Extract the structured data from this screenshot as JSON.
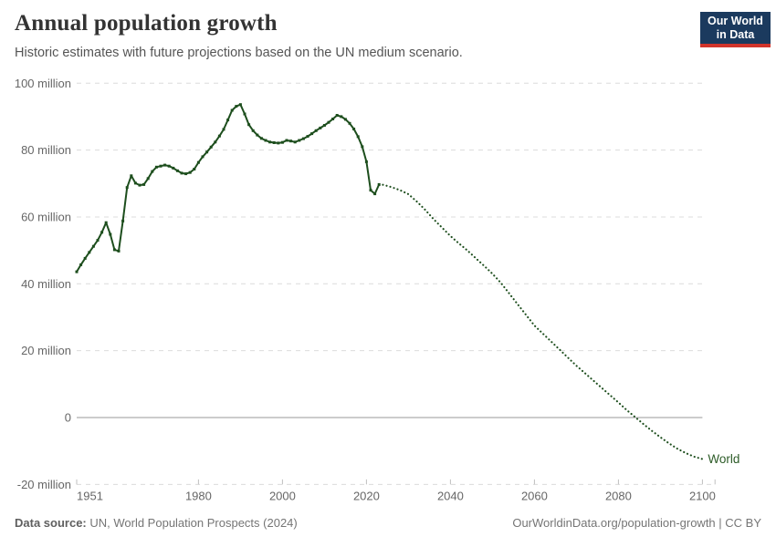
{
  "header": {
    "title": "Annual population growth",
    "subtitle": "Historic estimates with future projections based on the UN medium scenario.",
    "logo": {
      "line1": "Our World",
      "line2": "in Data"
    }
  },
  "footer": {
    "source_label": "Data source:",
    "source_value": " UN, World Population Prospects (2024)",
    "credit": "OurWorldinData.org/population-growth | CC BY"
  },
  "chart_data": {
    "type": "line",
    "title": "Annual population growth",
    "subtitle": "Historic estimates with future projections based on the UN medium scenario.",
    "entity_label": "World",
    "unit": "million",
    "x_range": [
      1951,
      2103
    ],
    "y_range": [
      -20,
      100
    ],
    "grid": true,
    "legend_position": "end-of-line",
    "y_ticks": [
      {
        "value": 100,
        "label": "100 million"
      },
      {
        "value": 80,
        "label": "80 million"
      },
      {
        "value": 60,
        "label": "60 million"
      },
      {
        "value": 40,
        "label": "40 million"
      },
      {
        "value": 20,
        "label": "20 million"
      },
      {
        "value": 0,
        "label": "0"
      },
      {
        "value": -20,
        "label": "-20 million"
      }
    ],
    "x_ticks": [
      {
        "value": 1951,
        "label": "1951"
      },
      {
        "value": 1980,
        "label": "1980"
      },
      {
        "value": 2000,
        "label": "2000"
      },
      {
        "value": 2020,
        "label": "2020"
      },
      {
        "value": 2040,
        "label": "2040"
      },
      {
        "value": 2060,
        "label": "2060"
      },
      {
        "value": 2080,
        "label": "2080"
      },
      {
        "value": 2100,
        "label": "2100"
      }
    ],
    "colors": {
      "series": "#1d4e1d",
      "entity_label": "#2d5c28",
      "grid": "#dcdcdc",
      "zero_line": "#bcbcbc",
      "axis_text": "#666666"
    },
    "series": [
      {
        "name": "World — historic estimates",
        "style": "solid",
        "points": [
          [
            1951,
            43.6
          ],
          [
            1952,
            45.7
          ],
          [
            1953,
            47.6
          ],
          [
            1954,
            49.4
          ],
          [
            1955,
            51.2
          ],
          [
            1956,
            53.0
          ],
          [
            1957,
            55.4
          ],
          [
            1958,
            58.3
          ],
          [
            1959,
            54.8
          ],
          [
            1960,
            50.2
          ],
          [
            1961,
            49.8
          ],
          [
            1962,
            58.8
          ],
          [
            1963,
            68.8
          ],
          [
            1964,
            72.3
          ],
          [
            1965,
            70.1
          ],
          [
            1966,
            69.5
          ],
          [
            1967,
            69.7
          ],
          [
            1968,
            71.5
          ],
          [
            1969,
            73.6
          ],
          [
            1970,
            74.9
          ],
          [
            1971,
            75.2
          ],
          [
            1972,
            75.5
          ],
          [
            1973,
            75.2
          ],
          [
            1974,
            74.6
          ],
          [
            1975,
            73.8
          ],
          [
            1976,
            73.1
          ],
          [
            1977,
            72.9
          ],
          [
            1978,
            73.3
          ],
          [
            1979,
            74.3
          ],
          [
            1980,
            76.3
          ],
          [
            1981,
            78.0
          ],
          [
            1982,
            79.4
          ],
          [
            1983,
            80.9
          ],
          [
            1984,
            82.4
          ],
          [
            1985,
            84.2
          ],
          [
            1986,
            86.2
          ],
          [
            1987,
            89.0
          ],
          [
            1988,
            91.9
          ],
          [
            1989,
            93.1
          ],
          [
            1990,
            93.6
          ],
          [
            1991,
            90.8
          ],
          [
            1992,
            87.6
          ],
          [
            1993,
            85.8
          ],
          [
            1994,
            84.5
          ],
          [
            1995,
            83.5
          ],
          [
            1996,
            82.9
          ],
          [
            1997,
            82.4
          ],
          [
            1998,
            82.2
          ],
          [
            1999,
            82.1
          ],
          [
            2000,
            82.3
          ],
          [
            2001,
            82.9
          ],
          [
            2002,
            82.7
          ],
          [
            2003,
            82.4
          ],
          [
            2004,
            82.9
          ],
          [
            2005,
            83.4
          ],
          [
            2006,
            84.1
          ],
          [
            2007,
            84.9
          ],
          [
            2008,
            85.8
          ],
          [
            2009,
            86.6
          ],
          [
            2010,
            87.4
          ],
          [
            2011,
            88.3
          ],
          [
            2012,
            89.3
          ],
          [
            2013,
            90.4
          ],
          [
            2014,
            90.0
          ],
          [
            2015,
            89.2
          ],
          [
            2016,
            88.0
          ],
          [
            2017,
            86.3
          ],
          [
            2018,
            84.0
          ],
          [
            2019,
            81.0
          ],
          [
            2020,
            76.5
          ],
          [
            2021,
            68.0
          ],
          [
            2022,
            66.9
          ],
          [
            2023,
            69.7
          ]
        ]
      },
      {
        "name": "World — UN medium scenario projection",
        "style": "dotted",
        "points": [
          [
            2023,
            69.7
          ],
          [
            2024,
            69.6
          ],
          [
            2026,
            68.9
          ],
          [
            2028,
            68.0
          ],
          [
            2030,
            66.8
          ],
          [
            2032,
            64.6
          ],
          [
            2034,
            62.1
          ],
          [
            2036,
            59.3
          ],
          [
            2038,
            56.8
          ],
          [
            2040,
            54.3
          ],
          [
            2042,
            52.1
          ],
          [
            2044,
            50.0
          ],
          [
            2046,
            47.7
          ],
          [
            2048,
            45.4
          ],
          [
            2050,
            43.0
          ],
          [
            2052,
            40.3
          ],
          [
            2054,
            37.1
          ],
          [
            2056,
            33.9
          ],
          [
            2058,
            30.7
          ],
          [
            2060,
            27.5
          ],
          [
            2062,
            25.1
          ],
          [
            2064,
            22.7
          ],
          [
            2066,
            20.3
          ],
          [
            2068,
            17.9
          ],
          [
            2070,
            15.5
          ],
          [
            2072,
            13.3
          ],
          [
            2074,
            11.1
          ],
          [
            2076,
            8.9
          ],
          [
            2078,
            6.7
          ],
          [
            2080,
            4.5
          ],
          [
            2082,
            2.2
          ],
          [
            2084,
            0.1
          ],
          [
            2086,
            -2.0
          ],
          [
            2088,
            -4.0
          ],
          [
            2090,
            -5.9
          ],
          [
            2092,
            -7.7
          ],
          [
            2094,
            -9.3
          ],
          [
            2096,
            -10.6
          ],
          [
            2098,
            -11.7
          ],
          [
            2100,
            -12.4
          ]
        ]
      }
    ]
  }
}
